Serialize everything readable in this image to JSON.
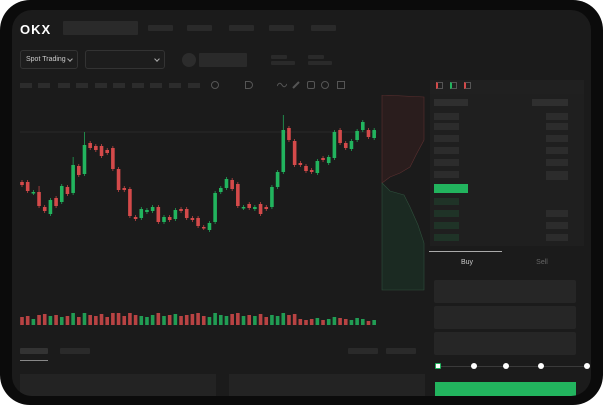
{
  "header": {
    "logo": "OKX"
  },
  "market": {
    "type_label": "Spot Trading",
    "pair_value": ""
  },
  "order_panel": {
    "tabs": [
      "Buy",
      "Sell"
    ],
    "active_tab": "Buy",
    "slider_percent": 0
  },
  "colors": {
    "up": "#22b45e",
    "down": "#d44a4a",
    "background": "#1b1b1b",
    "accent": "#22b45e"
  },
  "chart_data": {
    "type": "candlestick",
    "candles": [
      [
        68,
        65
      ],
      [
        68,
        59
      ],
      [
        57,
        58
      ],
      [
        58,
        44,
        64,
        42
      ],
      [
        43,
        39
      ],
      [
        36,
        50
      ],
      [
        52,
        44
      ],
      [
        48,
        64
      ],
      [
        63,
        56
      ],
      [
        57,
        85,
        93,
        55
      ],
      [
        84,
        75
      ],
      [
        76,
        105,
        118,
        74
      ],
      [
        107,
        102
      ],
      [
        104,
        100
      ],
      [
        104,
        94
      ],
      [
        100,
        97
      ],
      [
        102,
        81
      ],
      [
        81,
        60
      ],
      [
        62,
        60
      ],
      [
        61,
        34
      ],
      [
        33,
        31
      ],
      [
        32,
        41
      ],
      [
        38,
        40
      ],
      [
        39,
        43
      ],
      [
        43,
        28
      ],
      [
        28,
        33
      ],
      [
        33,
        30
      ],
      [
        31,
        40
      ],
      [
        41,
        39
      ],
      [
        41,
        32
      ],
      [
        32,
        30
      ],
      [
        32,
        24
      ],
      [
        23,
        22
      ],
      [
        20,
        27
      ],
      [
        28,
        57
      ],
      [
        58,
        62
      ],
      [
        62,
        71
      ],
      [
        70,
        61
      ],
      [
        66,
        44
      ],
      [
        42,
        43
      ],
      [
        46,
        42
      ],
      [
        41,
        43
      ],
      [
        46,
        36
      ],
      [
        43,
        41
      ],
      [
        43,
        63
      ],
      [
        63,
        78
      ],
      [
        78,
        120,
        135,
        76
      ],
      [
        122,
        110
      ],
      [
        109,
        85
      ],
      [
        87,
        85
      ],
      [
        84,
        79
      ],
      [
        80,
        78
      ],
      [
        77,
        89
      ],
      [
        92,
        90
      ],
      [
        87,
        93
      ],
      [
        92,
        118
      ],
      [
        120,
        107
      ],
      [
        107,
        102
      ],
      [
        101,
        109
      ],
      [
        110,
        119
      ],
      [
        120,
        128
      ],
      [
        120,
        113
      ],
      [
        112,
        120
      ]
    ],
    "volume": [
      8,
      9,
      6,
      10,
      11,
      9,
      10,
      8,
      9,
      12,
      8,
      12,
      10,
      9,
      11,
      8,
      12,
      12,
      9,
      12,
      10,
      9,
      8,
      10,
      12,
      9,
      10,
      11,
      9,
      10,
      11,
      12,
      9,
      8,
      12,
      10,
      9,
      11,
      12,
      9,
      10,
      9,
      11,
      8,
      10,
      9,
      12,
      10,
      11,
      6,
      5,
      6,
      7,
      5,
      6,
      8,
      7,
      6,
      5,
      7,
      6,
      4,
      5
    ]
  }
}
